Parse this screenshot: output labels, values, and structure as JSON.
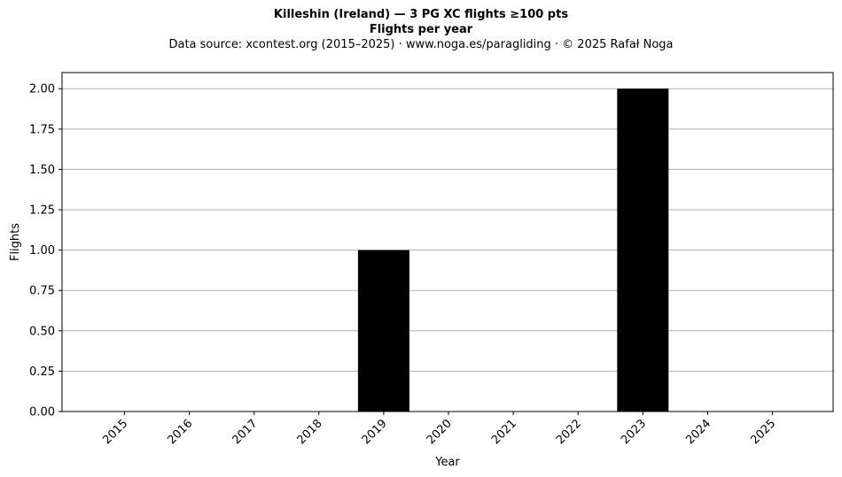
{
  "chart_data": {
    "type": "bar",
    "title": "Killeshin (Ireland)  —  3 PG XC flights ≥100 pts",
    "title_line2": "Flights per year",
    "subtitle": "Data source: xcontest.org (2015–2025)  ·  www.noga.es/paragliding  ·  © 2025 Rafał Noga",
    "xlabel": "Year",
    "ylabel": "Flights",
    "categories": [
      "2015",
      "2016",
      "2017",
      "2018",
      "2019",
      "2020",
      "2021",
      "2022",
      "2023",
      "2024",
      "2025"
    ],
    "values": [
      0,
      0,
      0,
      0,
      1,
      0,
      0,
      0,
      2,
      0,
      0
    ],
    "ylim": [
      0,
      2.1
    ],
    "yticks": [
      "0.00",
      "0.25",
      "0.50",
      "0.75",
      "1.00",
      "1.25",
      "1.50",
      "1.75",
      "2.00"
    ],
    "grid": "y",
    "bar_color": "#000000",
    "grid_color": "#b0b0b0"
  }
}
